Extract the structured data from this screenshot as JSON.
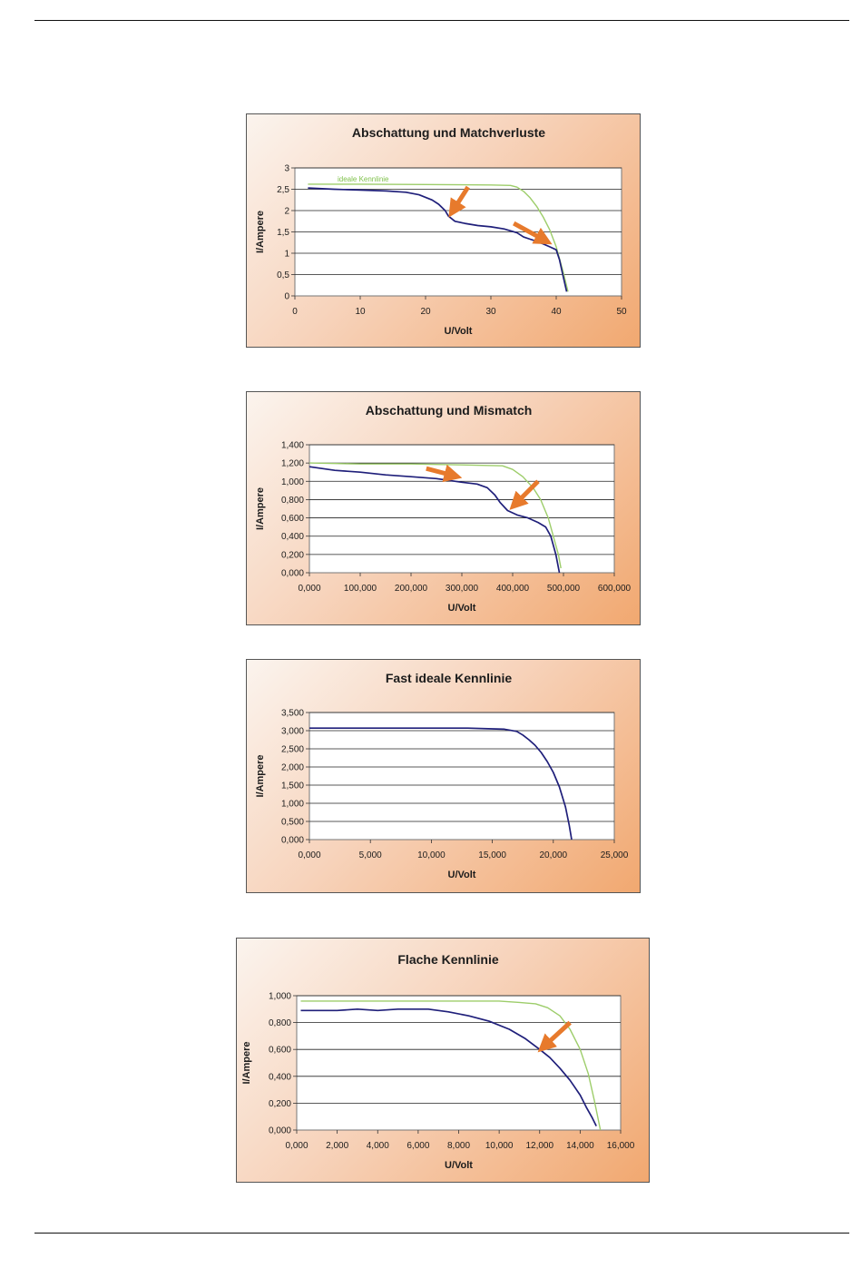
{
  "chart_data": [
    {
      "type": "line",
      "title": "Abschattung und Matchverluste",
      "xlabel": "U/Volt",
      "ylabel": "I/Ampere",
      "xlim": [
        0,
        50
      ],
      "ylim": [
        0,
        3
      ],
      "xticks": [
        "0",
        "10",
        "20",
        "30",
        "40",
        "50"
      ],
      "yticks": [
        "0",
        "0,5",
        "1",
        "1,5",
        "2",
        "2,5",
        "3"
      ],
      "grid": "horizontal",
      "annotations": [
        {
          "text": "ideale Kennlinie"
        }
      ],
      "series": [
        {
          "color": "#9dcd6a",
          "points": [
            [
              2,
              2.62
            ],
            [
              10,
              2.62
            ],
            [
              20,
              2.61
            ],
            [
              30,
              2.6
            ],
            [
              33,
              2.59
            ],
            [
              34,
              2.55
            ],
            [
              35,
              2.45
            ],
            [
              36,
              2.3
            ],
            [
              37,
              2.1
            ],
            [
              38,
              1.85
            ],
            [
              39,
              1.55
            ],
            [
              40,
              1.15
            ],
            [
              41,
              0.6
            ],
            [
              41.8,
              0.1
            ]
          ]
        },
        {
          "color": "#1f1f7a",
          "points": [
            [
              2,
              2.53
            ],
            [
              6,
              2.5
            ],
            [
              10,
              2.48
            ],
            [
              14,
              2.46
            ],
            [
              17,
              2.43
            ],
            [
              19,
              2.37
            ],
            [
              21,
              2.25
            ],
            [
              22,
              2.15
            ],
            [
              23,
              2.0
            ],
            [
              23.5,
              1.87
            ],
            [
              24.5,
              1.75
            ],
            [
              26,
              1.7
            ],
            [
              28,
              1.65
            ],
            [
              30,
              1.62
            ],
            [
              32,
              1.57
            ],
            [
              34,
              1.48
            ],
            [
              35,
              1.38
            ],
            [
              36,
              1.33
            ],
            [
              37,
              1.28
            ],
            [
              38,
              1.22
            ],
            [
              39,
              1.15
            ],
            [
              40,
              1.08
            ],
            [
              40.5,
              0.85
            ],
            [
              41,
              0.5
            ],
            [
              41.6,
              0.1
            ]
          ]
        }
      ],
      "arrows": [
        {
          "color": "#e77a2c",
          "from": [
            26.5,
            2.55
          ],
          "to": [
            24.2,
            2.0
          ]
        },
        {
          "color": "#e77a2c",
          "from": [
            33.5,
            1.7
          ],
          "to": [
            38.3,
            1.3
          ]
        }
      ]
    },
    {
      "type": "line",
      "title": "Abschattung und Mismatch",
      "xlabel": "U/Volt",
      "ylabel": "I/Ampere",
      "xlim": [
        0,
        600
      ],
      "ylim": [
        0,
        1.4
      ],
      "xticks": [
        "0,000",
        "100,000",
        "200,000",
        "300,000",
        "400,000",
        "500,000",
        "600,000"
      ],
      "yticks": [
        "0,000",
        "0,200",
        "0,400",
        "0,600",
        "0,800",
        "1,000",
        "1,200",
        "1,400"
      ],
      "grid": "horizontal",
      "series": [
        {
          "color": "#9dcd6a",
          "points": [
            [
              0,
              1.2
            ],
            [
              100,
              1.19
            ],
            [
              200,
              1.19
            ],
            [
              300,
              1.18
            ],
            [
              380,
              1.17
            ],
            [
              400,
              1.13
            ],
            [
              420,
              1.05
            ],
            [
              440,
              0.93
            ],
            [
              455,
              0.8
            ],
            [
              470,
              0.6
            ],
            [
              480,
              0.4
            ],
            [
              490,
              0.2
            ],
            [
              495,
              0.05
            ]
          ]
        },
        {
          "color": "#1f1f7a",
          "points": [
            [
              0,
              1.16
            ],
            [
              50,
              1.12
            ],
            [
              100,
              1.1
            ],
            [
              150,
              1.07
            ],
            [
              200,
              1.05
            ],
            [
              250,
              1.03
            ],
            [
              300,
              0.99
            ],
            [
              330,
              0.97
            ],
            [
              350,
              0.93
            ],
            [
              365,
              0.85
            ],
            [
              375,
              0.77
            ],
            [
              390,
              0.68
            ],
            [
              410,
              0.63
            ],
            [
              430,
              0.6
            ],
            [
              450,
              0.55
            ],
            [
              465,
              0.5
            ],
            [
              475,
              0.4
            ],
            [
              485,
              0.2
            ],
            [
              492,
              0.0
            ]
          ]
        }
      ],
      "arrows": [
        {
          "color": "#e77a2c",
          "from": [
            230,
            1.14
          ],
          "to": [
            285,
            1.06
          ]
        },
        {
          "color": "#e77a2c",
          "from": [
            450,
            1.0
          ],
          "to": [
            405,
            0.75
          ]
        }
      ]
    },
    {
      "type": "line",
      "title": "Fast ideale Kennlinie",
      "xlabel": "U/Volt",
      "ylabel": "I/Ampere",
      "xlim": [
        0,
        25
      ],
      "ylim": [
        0,
        3.5
      ],
      "xticks": [
        "0,000",
        "5,000",
        "10,000",
        "15,000",
        "20,000",
        "25,000"
      ],
      "yticks": [
        "0,000",
        "0,500",
        "1,000",
        "1,500",
        "2,000",
        "2,500",
        "3,000",
        "3,500"
      ],
      "grid": "horizontal",
      "series": [
        {
          "color": "#1f1f7a",
          "points": [
            [
              0,
              3.07
            ],
            [
              5,
              3.07
            ],
            [
              10,
              3.07
            ],
            [
              13,
              3.07
            ],
            [
              15,
              3.05
            ],
            [
              16,
              3.04
            ],
            [
              17,
              2.98
            ],
            [
              17.5,
              2.88
            ],
            [
              18,
              2.75
            ],
            [
              18.5,
              2.6
            ],
            [
              19,
              2.4
            ],
            [
              19.5,
              2.15
            ],
            [
              20,
              1.85
            ],
            [
              20.5,
              1.45
            ],
            [
              21,
              0.9
            ],
            [
              21.3,
              0.4
            ],
            [
              21.5,
              0.0
            ]
          ]
        }
      ]
    },
    {
      "type": "line",
      "title": "Flache Kennlinie",
      "xlabel": "U/Volt",
      "ylabel": "I/Ampere",
      "xlim": [
        0,
        16
      ],
      "ylim": [
        0,
        1
      ],
      "xticks": [
        "0,000",
        "2,000",
        "4,000",
        "6,000",
        "8,000",
        "10,000",
        "12,000",
        "14,000",
        "16,000"
      ],
      "yticks": [
        "0,000",
        "0,200",
        "0,400",
        "0,600",
        "0,800",
        "1,000"
      ],
      "grid": "horizontal",
      "series": [
        {
          "color": "#9dcd6a",
          "points": [
            [
              0.2,
              0.96
            ],
            [
              4,
              0.96
            ],
            [
              8,
              0.96
            ],
            [
              10,
              0.96
            ],
            [
              11,
              0.95
            ],
            [
              11.8,
              0.94
            ],
            [
              12.4,
              0.91
            ],
            [
              13,
              0.85
            ],
            [
              13.5,
              0.75
            ],
            [
              14,
              0.6
            ],
            [
              14.4,
              0.42
            ],
            [
              14.7,
              0.22
            ],
            [
              15,
              0.0
            ]
          ]
        },
        {
          "color": "#1f1f7a",
          "points": [
            [
              0.2,
              0.89
            ],
            [
              2,
              0.89
            ],
            [
              3,
              0.9
            ],
            [
              4,
              0.89
            ],
            [
              5,
              0.9
            ],
            [
              6.5,
              0.9
            ],
            [
              7.5,
              0.88
            ],
            [
              8.5,
              0.85
            ],
            [
              9.5,
              0.81
            ],
            [
              10.5,
              0.75
            ],
            [
              11.3,
              0.68
            ],
            [
              12,
              0.6
            ],
            [
              12.5,
              0.54
            ],
            [
              13,
              0.46
            ],
            [
              13.5,
              0.37
            ],
            [
              14,
              0.26
            ],
            [
              14.3,
              0.17
            ],
            [
              14.6,
              0.09
            ],
            [
              14.8,
              0.03
            ]
          ]
        }
      ],
      "arrows": [
        {
          "color": "#e77a2c",
          "from": [
            13.5,
            0.8
          ],
          "to": [
            12.2,
            0.62
          ]
        }
      ]
    }
  ]
}
